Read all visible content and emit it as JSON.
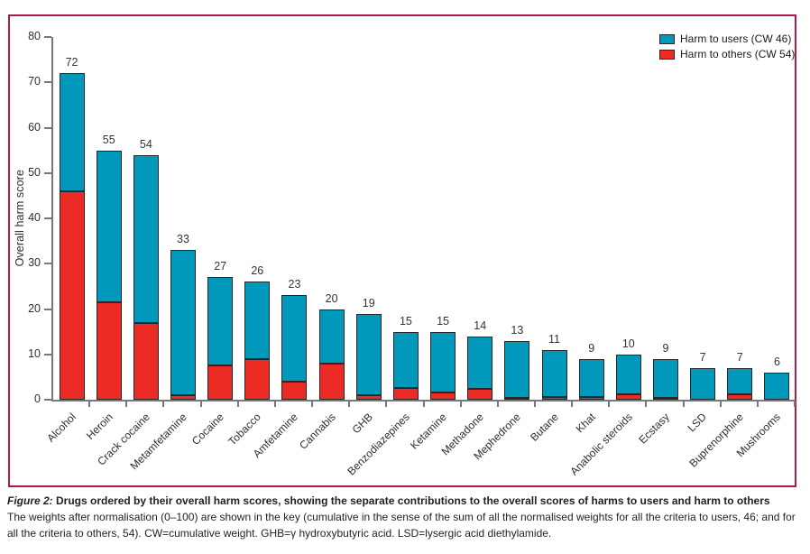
{
  "figure": {
    "caption_label": "Figure 2:",
    "caption_title": "Drugs ordered by their overall harm scores, showing the separate contributions to the overall scores of harms to users and harm to others",
    "caption_body": "The weights after normalisation (0–100) are shown in the key (cumulative in the sense of the sum of all the normalised weights for all the criteria to users, 46; and for all the criteria to others, 54). CW=cumulative weight. GHB=γ hydroxybutyric acid. LSD=lysergic acid diethylamide."
  },
  "colors": {
    "users": "#0098BB",
    "others": "#EC2B24",
    "frame": "#AC1A4E",
    "axis": "#77787B",
    "bar_outline": "#28282A"
  },
  "chart_data": {
    "type": "bar",
    "stacked": true,
    "ylabel": "Overall harm score",
    "ylim": [
      0,
      80
    ],
    "yticks": [
      0,
      10,
      20,
      30,
      40,
      50,
      60,
      70,
      80
    ],
    "grid": false,
    "legend_position": "top-right",
    "categories": [
      "Alcohol",
      "Heroin",
      "Crack cocaine",
      "Metamfetamine",
      "Cocaine",
      "Tobacco",
      "Amfetamine",
      "Cannabis",
      "GHB",
      "Benzodiazepines",
      "Ketamine",
      "Methadone",
      "Mephedrone",
      "Butane",
      "Khat",
      "Anabolic steroids",
      "Ecstasy",
      "LSD",
      "Buprenorphine",
      "Mushrooms"
    ],
    "totals": [
      72,
      55,
      54,
      33,
      27,
      26,
      23,
      20,
      19,
      15,
      15,
      14,
      13,
      11,
      9,
      10,
      9,
      7,
      7,
      6
    ],
    "total_labels": [
      "72",
      "55",
      "54",
      "33",
      "27",
      "26",
      "23",
      "20",
      "19",
      "15",
      "15",
      "14",
      "13",
      "11",
      "9",
      "10",
      "9",
      "7",
      "7",
      "6"
    ],
    "series": [
      {
        "name": "Harm to users (CW 46)",
        "color": "#0098BB",
        "values": [
          26,
          33.5,
          37,
          32,
          19.5,
          17,
          19,
          12,
          18,
          12.5,
          13.5,
          11.7,
          12.5,
          10.4,
          8.4,
          8.8,
          8.5,
          7,
          5.8,
          6
        ]
      },
      {
        "name": "Harm to others (CW 54)",
        "color": "#EC2B24",
        "values": [
          46,
          21.5,
          17,
          1,
          7.5,
          9,
          4,
          8,
          1,
          2.5,
          1.5,
          2.3,
          0.5,
          0.6,
          0.6,
          1.2,
          0.5,
          0,
          1.2,
          0
        ]
      }
    ]
  }
}
